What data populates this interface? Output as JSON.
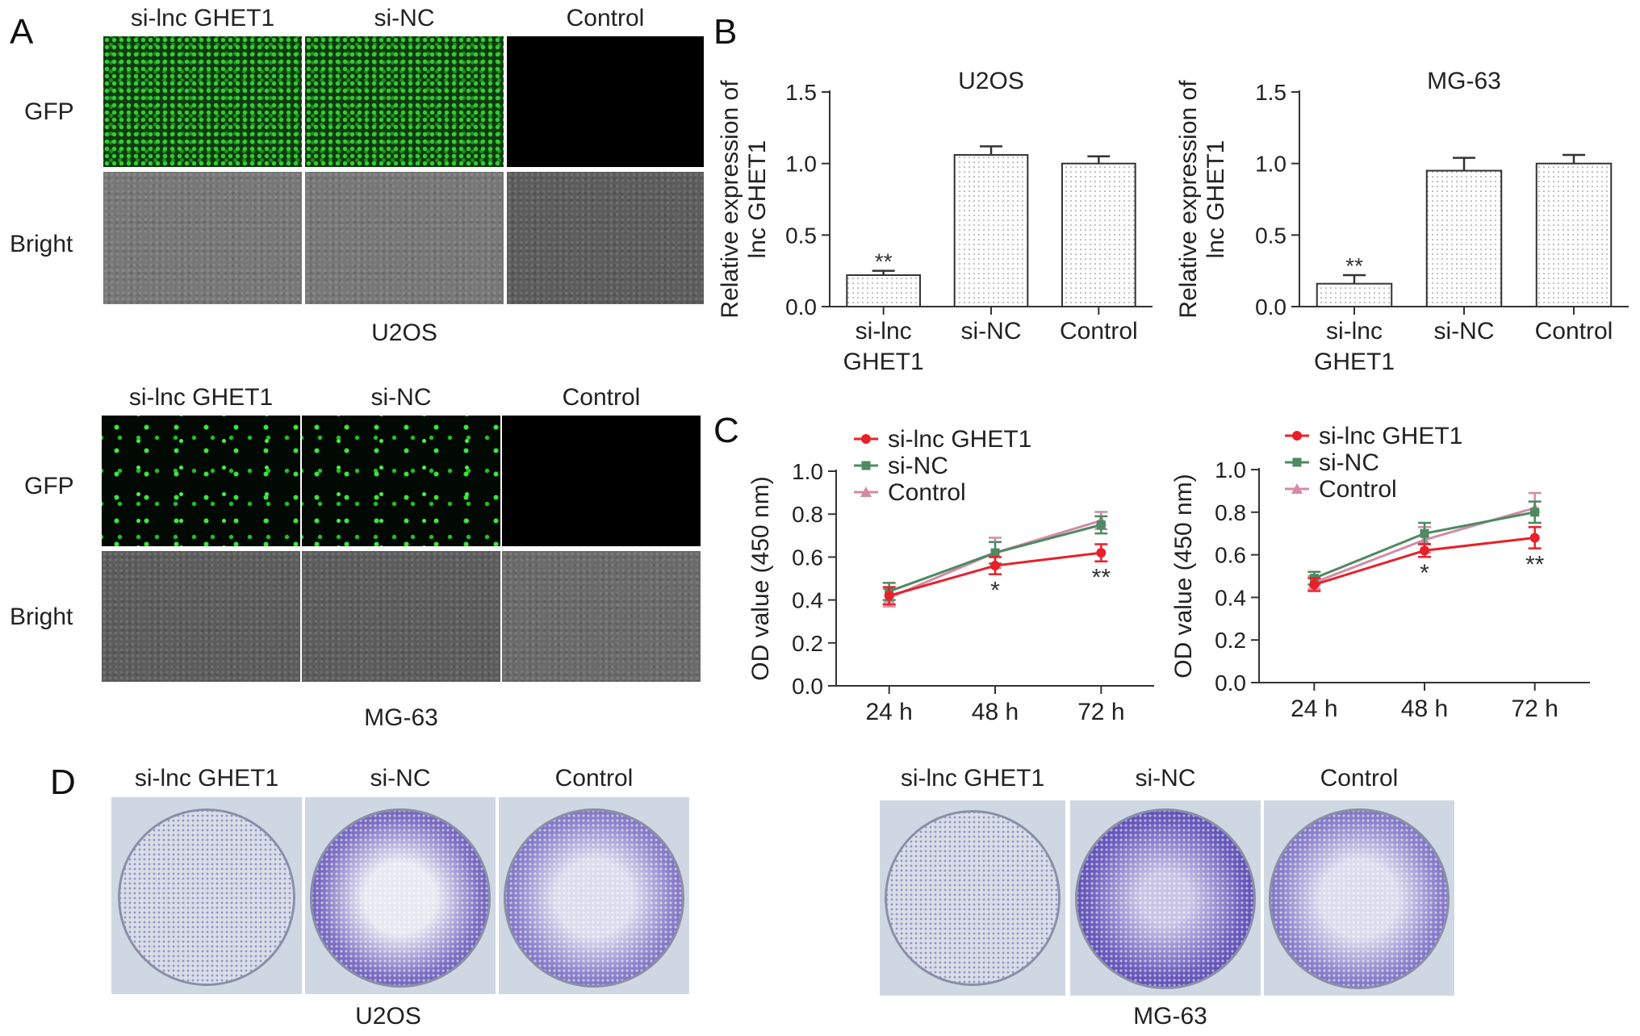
{
  "panel_labels": {
    "a": "A",
    "b": "B",
    "c": "C",
    "d": "D"
  },
  "panel_a": {
    "blocks": [
      {
        "columns": [
          "si-lnc GHET1",
          "si-NC",
          "Control"
        ],
        "rows": [
          "GFP",
          "Bright"
        ],
        "caption": "U2OS"
      },
      {
        "columns": [
          "si-lnc GHET1",
          "si-NC",
          "Control"
        ],
        "rows": [
          "GFP",
          "Bright"
        ],
        "caption": "MG-63"
      }
    ]
  },
  "panel_d": {
    "blocks": [
      {
        "columns": [
          "si-lnc GHET1",
          "si-NC",
          "Control"
        ],
        "caption": "U2OS"
      },
      {
        "columns": [
          "si-lnc GHET1",
          "si-NC",
          "Control"
        ],
        "caption": "MG-63"
      }
    ]
  },
  "colors": {
    "bar_fill": "#ffffff",
    "si_lnc": "#e8202a",
    "si_nc": "#4e8a63",
    "control": "#d48aa6"
  },
  "chart_data": [
    {
      "type": "bar",
      "title": "U2OS",
      "ylabel": "Relative expression of lnc GHET1",
      "categories": [
        "si-lnc GHET1",
        "si-NC",
        "Control"
      ],
      "tick_labels": [
        [
          "si-lnc",
          "GHET1"
        ],
        [
          "si-NC"
        ],
        [
          "Control"
        ]
      ],
      "values": [
        0.22,
        1.06,
        1.0
      ],
      "errors": [
        0.03,
        0.06,
        0.05
      ],
      "annotations": [
        "**",
        "",
        ""
      ],
      "ylim": [
        0,
        1.5
      ],
      "yticks": [
        "0.0",
        "0.5",
        "1.0",
        "1.5"
      ]
    },
    {
      "type": "bar",
      "title": "MG-63",
      "ylabel": "Relative expression of lnc GHET1",
      "categories": [
        "si-lnc GHET1",
        "si-NC",
        "Control"
      ],
      "tick_labels": [
        [
          "si-lnc",
          "GHET1"
        ],
        [
          "si-NC"
        ],
        [
          "Control"
        ]
      ],
      "values": [
        0.16,
        0.95,
        1.0
      ],
      "errors": [
        0.06,
        0.09,
        0.06
      ],
      "annotations": [
        "**",
        "",
        ""
      ],
      "ylim": [
        0,
        1.5
      ],
      "yticks": [
        "0.0",
        "0.5",
        "1.0",
        "1.5"
      ]
    },
    {
      "type": "line",
      "ylabel": "OD value (450 nm)",
      "x": [
        "24 h",
        "48 h",
        "72 h"
      ],
      "ylim": [
        0,
        1.0
      ],
      "yticks": [
        "0.0",
        "0.2",
        "0.4",
        "0.6",
        "0.8",
        "1.0"
      ],
      "legend_placement": "top-left",
      "series": [
        {
          "name": "si-lnc GHET1",
          "color": "#e8202a",
          "marker": "circle",
          "values": [
            0.42,
            0.56,
            0.62
          ],
          "errors": [
            0.04,
            0.04,
            0.04
          ]
        },
        {
          "name": "si-NC",
          "color": "#4e8a63",
          "marker": "square",
          "values": [
            0.44,
            0.62,
            0.75
          ],
          "errors": [
            0.04,
            0.05,
            0.04
          ]
        },
        {
          "name": "Control",
          "color": "#d48aa6",
          "marker": "triangle",
          "values": [
            0.41,
            0.62,
            0.77
          ],
          "errors": [
            0.04,
            0.07,
            0.04
          ]
        }
      ],
      "annotations": [
        "",
        "*",
        "**"
      ]
    },
    {
      "type": "line",
      "ylabel": "OD value (450 nm)",
      "x": [
        "24 h",
        "48 h",
        "72 h"
      ],
      "ylim": [
        0,
        1.0
      ],
      "yticks": [
        "0.0",
        "0.2",
        "0.4",
        "0.6",
        "0.8",
        "1.0"
      ],
      "legend_placement": "top-left",
      "series": [
        {
          "name": "si-lnc GHET1",
          "color": "#e8202a",
          "marker": "circle",
          "values": [
            0.46,
            0.62,
            0.68
          ],
          "errors": [
            0.03,
            0.03,
            0.05
          ]
        },
        {
          "name": "si-NC",
          "color": "#4e8a63",
          "marker": "square",
          "values": [
            0.49,
            0.7,
            0.8
          ],
          "errors": [
            0.03,
            0.05,
            0.05
          ]
        },
        {
          "name": "Control",
          "color": "#d48aa6",
          "marker": "triangle",
          "values": [
            0.47,
            0.67,
            0.82
          ],
          "errors": [
            0.03,
            0.06,
            0.07
          ]
        }
      ],
      "annotations": [
        "",
        "*",
        "**"
      ]
    }
  ]
}
